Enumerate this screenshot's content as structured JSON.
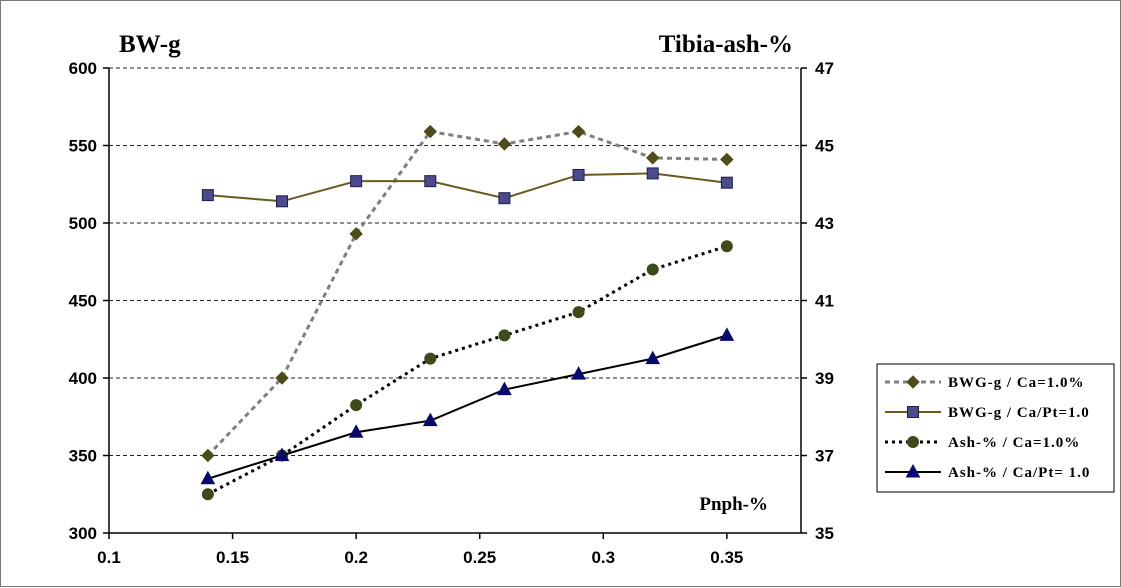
{
  "chart_data": {
    "type": "line",
    "x": [
      0.14,
      0.17,
      0.2,
      0.23,
      0.26,
      0.29,
      0.32,
      0.35
    ],
    "xlim": [
      0.1,
      0.38
    ],
    "x_ticks": [
      "0.1",
      "0.15",
      "0.2",
      "0.25",
      "0.3",
      "0.35"
    ],
    "x_tick_values": [
      0.1,
      0.15,
      0.2,
      0.25,
      0.3,
      0.35
    ],
    "ylim_left": [
      300,
      600
    ],
    "y_ticks_left": [
      "300",
      "350",
      "400",
      "450",
      "500",
      "550",
      "600"
    ],
    "ylim_right": [
      35,
      47
    ],
    "y_ticks_right": [
      "35",
      "37",
      "39",
      "41",
      "43",
      "45",
      "47"
    ],
    "ylabel_left": "BW-g",
    "ylabel_right": "Tibia-ash-%",
    "xlabel": "Pnph-%",
    "grid": "horizontal dashed",
    "legend_position": "right",
    "series": [
      {
        "name": "BWG-g / Ca=1.0%",
        "axis": "left",
        "color": "#7f7f7f",
        "marker_color": "#4d4d1a",
        "line": "dashed",
        "marker": "diamond",
        "values": [
          350,
          400,
          493,
          559,
          551,
          559,
          542,
          541
        ]
      },
      {
        "name": "BWG-g / Ca/Pt=1.0",
        "axis": "left",
        "color": "#6b5a1f",
        "marker_color": "#4a4a8c",
        "line": "solid",
        "marker": "square",
        "values": [
          518,
          514,
          527,
          527,
          516,
          531,
          532,
          526
        ]
      },
      {
        "name": "Ash-% / Ca=1.0%",
        "axis": "right",
        "color": "#000000",
        "marker_color": "#3d4a1a",
        "line": "dotted",
        "marker": "circle",
        "values": [
          36.0,
          37.0,
          38.3,
          39.5,
          40.1,
          40.7,
          41.8,
          42.4
        ]
      },
      {
        "name": "Ash-% / Ca/Pt= 1.0",
        "axis": "right",
        "color": "#000000",
        "marker_color": "#0a0a6e",
        "line": "solid",
        "marker": "triangle",
        "values": [
          36.4,
          37.0,
          37.6,
          37.9,
          38.7,
          39.1,
          39.5,
          40.1
        ]
      }
    ]
  }
}
